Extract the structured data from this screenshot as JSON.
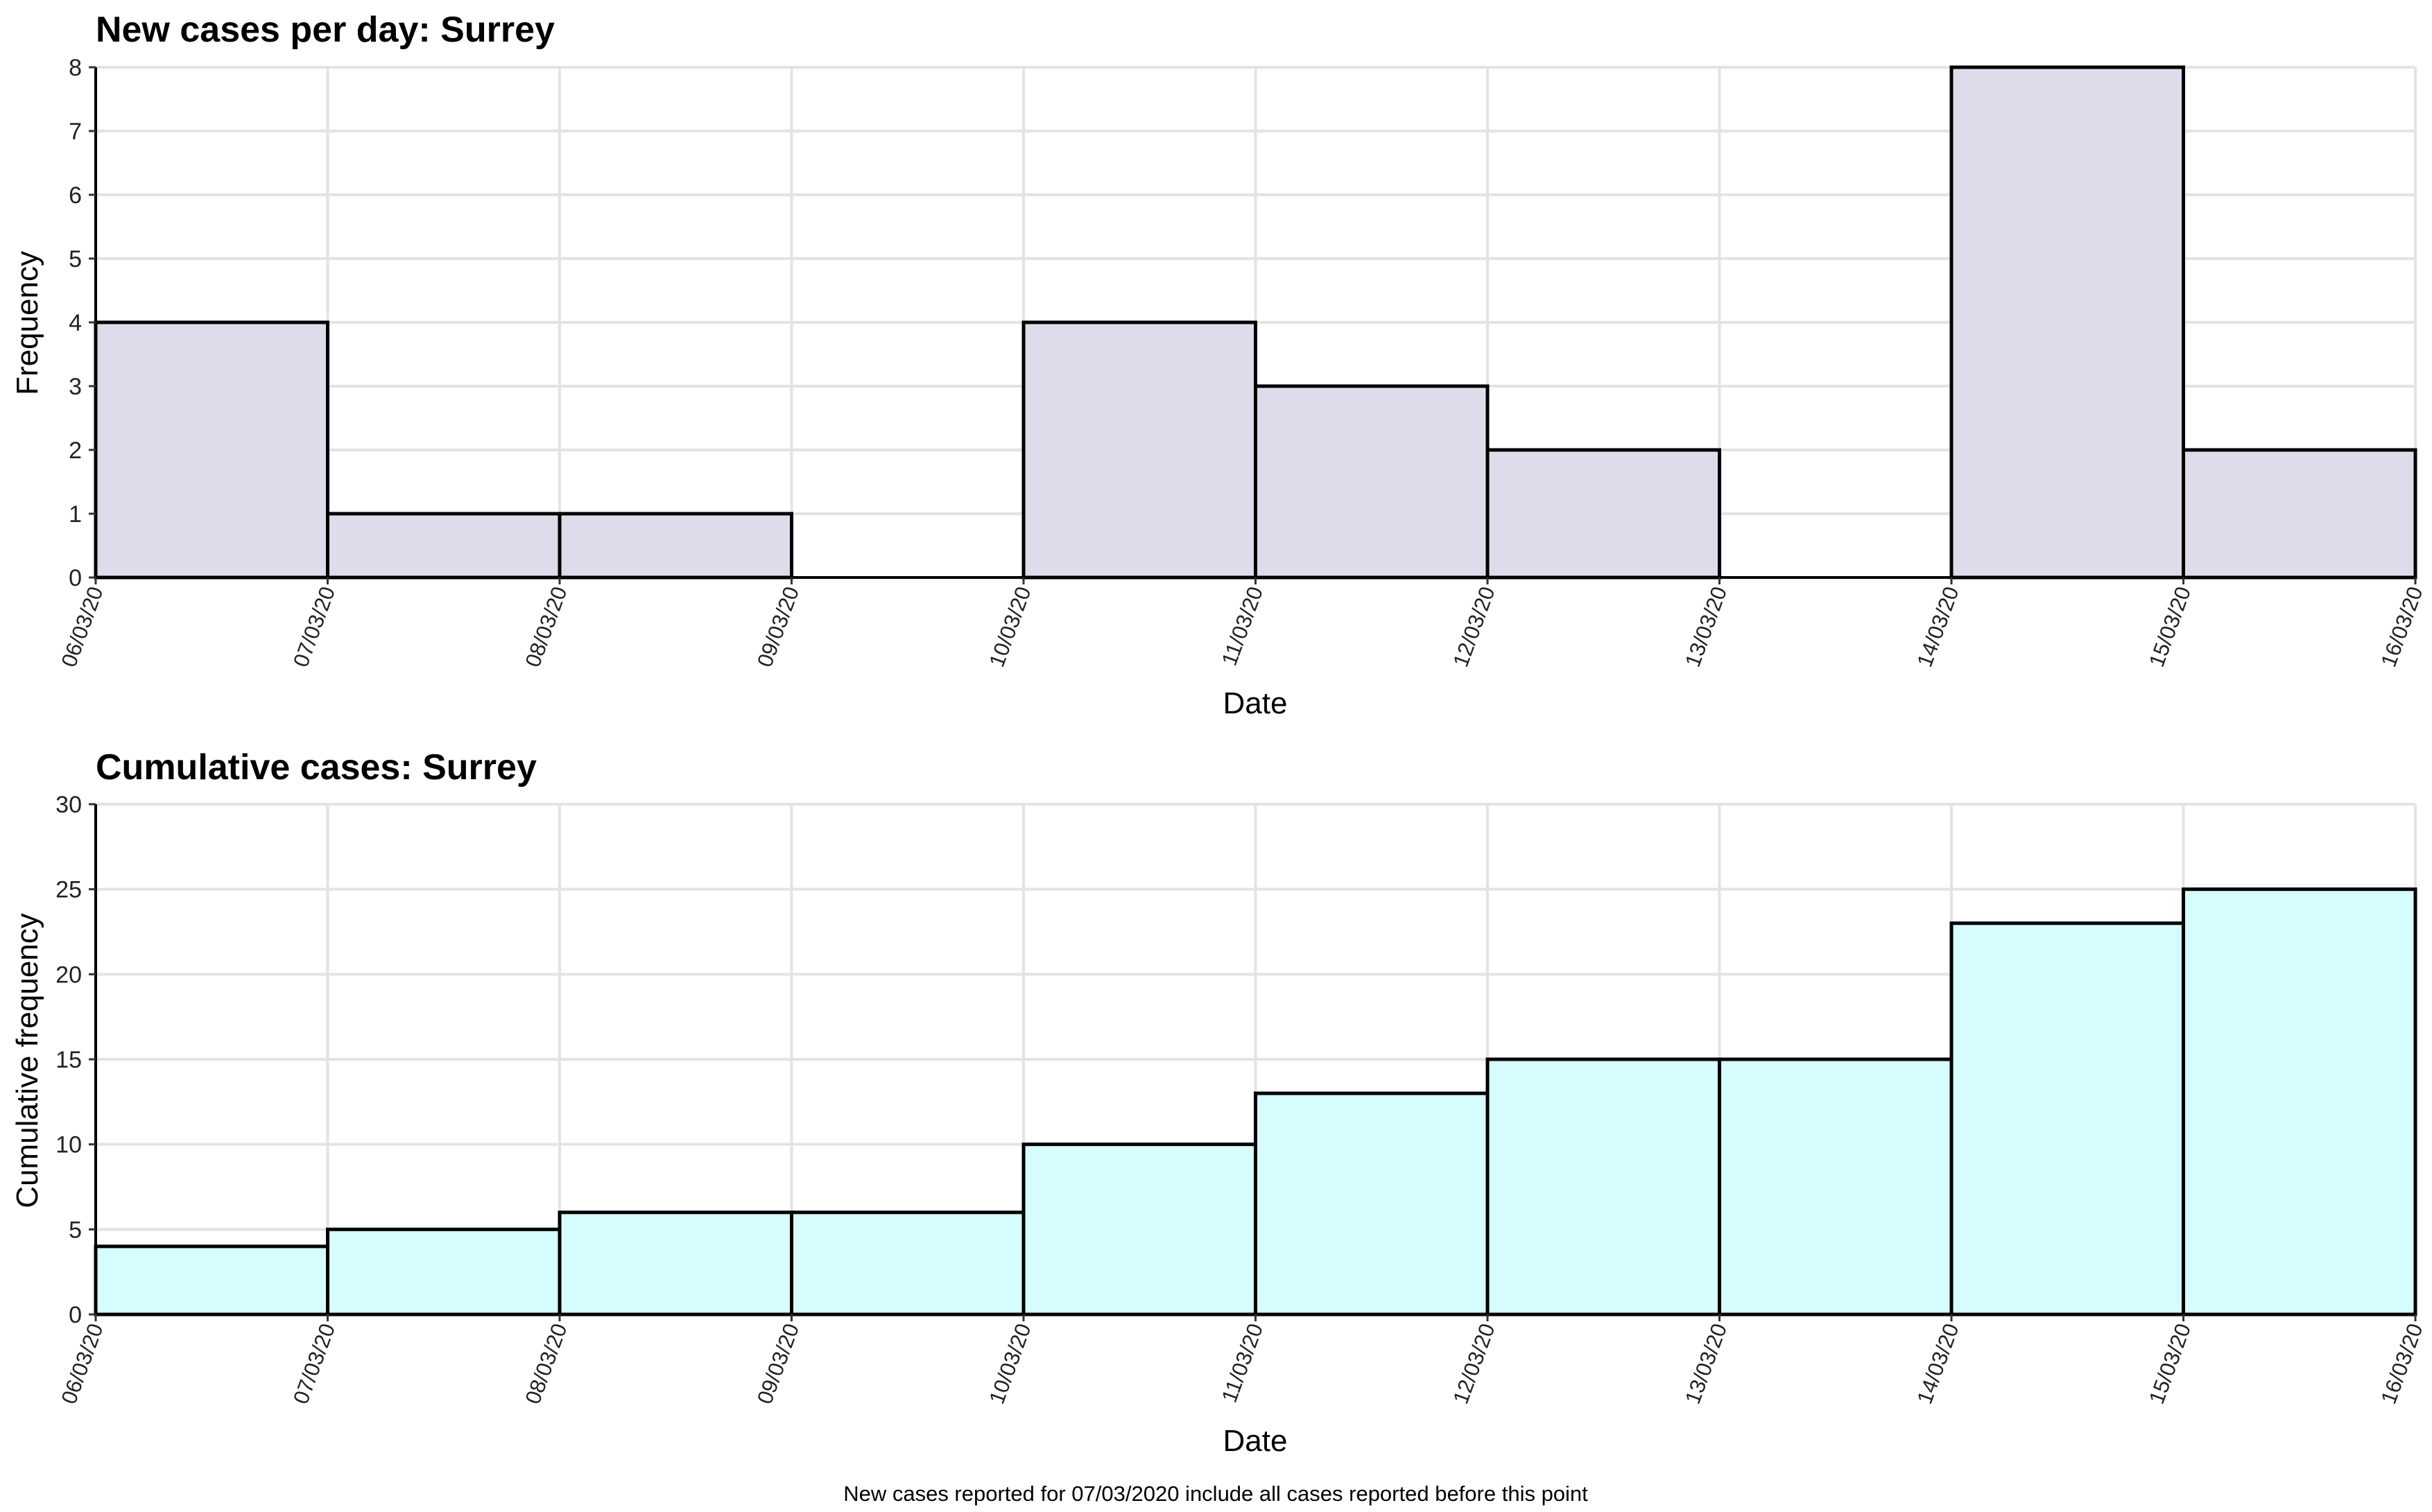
{
  "footnote": "New cases reported for 07/03/2020 include all cases reported before this point",
  "chart_data": [
    {
      "type": "bar",
      "title": "New cases per day: Surrey",
      "xlabel": "Date",
      "ylabel": "Frequency",
      "x_ticks": [
        "06/03/20",
        "07/03/20",
        "08/03/20",
        "09/03/20",
        "10/03/20",
        "11/03/20",
        "12/03/20",
        "13/03/20",
        "14/03/20",
        "15/03/20",
        "16/03/20"
      ],
      "categories": [
        "06/03/20",
        "07/03/20",
        "08/03/20",
        "09/03/20",
        "10/03/20",
        "11/03/20",
        "12/03/20",
        "13/03/20",
        "14/03/20",
        "15/03/20"
      ],
      "values": [
        4,
        1,
        1,
        0,
        4,
        3,
        2,
        0,
        8,
        2
      ],
      "ylim": [
        0,
        8
      ],
      "y_ticks": [
        0,
        1,
        2,
        3,
        4,
        5,
        6,
        7,
        8
      ],
      "grid": true,
      "fill_color": "#e0dbeb",
      "edge_color": "#000000"
    },
    {
      "type": "bar",
      "title": "Cumulative cases: Surrey",
      "xlabel": "Date",
      "ylabel": "Cumulative frequency",
      "x_ticks": [
        "06/03/20",
        "07/03/20",
        "08/03/20",
        "09/03/20",
        "10/03/20",
        "11/03/20",
        "12/03/20",
        "13/03/20",
        "14/03/20",
        "15/03/20",
        "16/03/20"
      ],
      "categories": [
        "06/03/20",
        "07/03/20",
        "08/03/20",
        "09/03/20",
        "10/03/20",
        "11/03/20",
        "12/03/20",
        "13/03/20",
        "14/03/20",
        "15/03/20"
      ],
      "values": [
        4,
        5,
        6,
        6,
        10,
        13,
        15,
        15,
        23,
        25
      ],
      "ylim": [
        0,
        30
      ],
      "y_ticks": [
        0,
        5,
        10,
        15,
        20,
        25,
        30
      ],
      "grid": true,
      "fill_color": "#d6fcfd",
      "edge_color": "#000000"
    }
  ]
}
